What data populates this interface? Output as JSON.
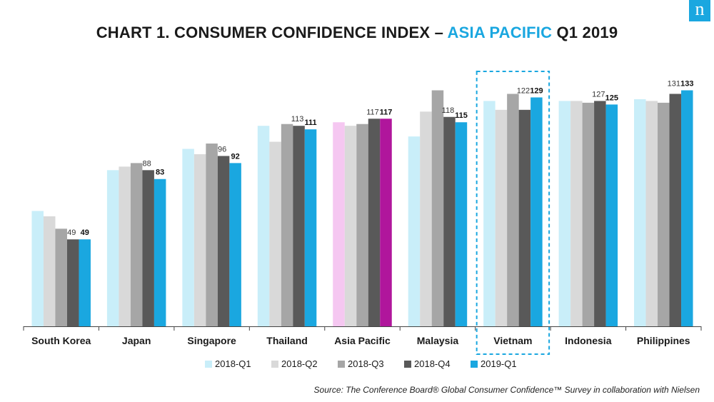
{
  "brand": {
    "logo_text": "n",
    "logo_color": "#1aa7e0"
  },
  "title": {
    "prefix": "CHART 1. CONSUMER CONFIDENCE INDEX – ",
    "highlight": "ASIA PACIFIC",
    "suffix": " Q1 2019"
  },
  "source": "Source: The Conference Board® Global Consumer Confidence™ Survey in collaboration with Nielsen",
  "highlight_box": {
    "category": "Vietnam",
    "color": "#1aa7e0",
    "style": "dashed"
  },
  "chart_data": {
    "type": "bar",
    "title": "CHART 1. CONSUMER CONFIDENCE INDEX – ASIA PACIFIC Q1 2019",
    "xlabel": "",
    "ylabel": "",
    "ylim": [
      0,
      140
    ],
    "grid": false,
    "legend_position": "bottom",
    "categories": [
      "South Korea",
      "Japan",
      "Singapore",
      "Thailand",
      "Asia Pacific",
      "Malaysia",
      "Vietnam",
      "Indonesia",
      "Philippines"
    ],
    "series": [
      {
        "name": "2018-Q1",
        "color": "#c9eef9",
        "values": [
          65,
          88,
          100,
          113,
          115,
          107,
          127,
          127,
          128
        ]
      },
      {
        "name": "2018-Q2",
        "color": "#d9d9d9",
        "values": [
          62,
          90,
          97,
          104,
          113,
          121,
          122,
          127,
          127
        ]
      },
      {
        "name": "2018-Q3",
        "color": "#a6a6a6",
        "values": [
          55,
          92,
          103,
          114,
          114,
          133,
          131,
          126,
          126
        ]
      },
      {
        "name": "2018-Q4",
        "color": "#595959",
        "values": [
          49,
          88,
          96,
          113,
          117,
          118,
          122,
          127,
          131
        ]
      },
      {
        "name": "2019-Q1",
        "color": "#1aa7e0",
        "values": [
          49,
          83,
          92,
          111,
          117,
          115,
          129,
          125,
          133
        ]
      }
    ],
    "highlight_colors": {
      "Asia Pacific": {
        "2018-Q1": "#f5c7f1",
        "2019-Q1": "#b0169c"
      }
    },
    "data_labels": [
      {
        "category": "South Korea",
        "q4": "49",
        "q1": "49"
      },
      {
        "category": "Japan",
        "q4": "88",
        "q1": "83"
      },
      {
        "category": "Singapore",
        "q4": "96",
        "q1": "92"
      },
      {
        "category": "Thailand",
        "q4": "113",
        "q1": "111"
      },
      {
        "category": "Asia Pacific",
        "q4": "117",
        "q1": "117"
      },
      {
        "category": "Malaysia",
        "q4": "118",
        "q1": "115"
      },
      {
        "category": "Vietnam",
        "q4": "122",
        "q1": "129"
      },
      {
        "category": "Indonesia",
        "q4": "127",
        "q1": "125"
      },
      {
        "category": "Philippines",
        "q4": "131",
        "q1": "133"
      }
    ]
  }
}
